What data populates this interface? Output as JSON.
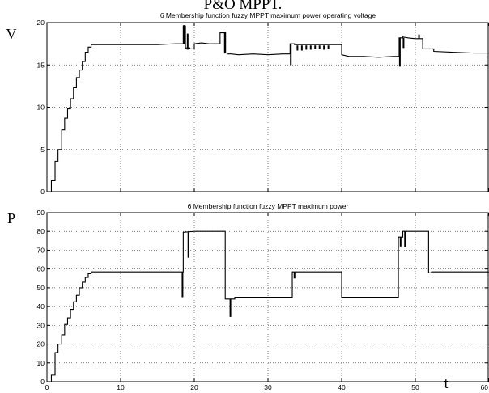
{
  "header_text": "P&O MPPT.",
  "chart_data": [
    {
      "type": "line",
      "title": "6 Membership function fuzzy MPPT maximum power operating voltage",
      "ylabel": "V",
      "xlabel": "",
      "xlim": [
        0,
        60
      ],
      "ylim": [
        0,
        20
      ],
      "grid": true,
      "x_ticks": [
        0,
        10,
        20,
        30,
        40,
        50,
        60
      ],
      "x_tick_labels": [
        "",
        "",
        "",
        "",
        "",
        "",
        ""
      ],
      "y_ticks": [
        0,
        5,
        10,
        15,
        20
      ],
      "y_tick_labels": [
        "0",
        "5",
        "10",
        "15",
        "20"
      ],
      "series": [
        {
          "x": [
            0,
            0.6,
            0.6,
            1.1,
            1.1,
            1.5,
            1.5,
            2.0,
            2.0,
            2.4,
            2.4,
            2.8,
            2.8,
            3.2,
            3.2,
            3.6,
            3.6,
            4.0,
            4.0,
            4.4,
            4.4,
            4.8,
            4.8,
            5.2,
            5.2,
            5.6,
            5.6,
            6.0,
            6.0,
            9.0,
            12.0,
            15.0,
            17.5,
            18.5,
            18.5,
            18.8,
            18.8,
            19.4,
            19.4,
            20.0,
            20.0,
            21.0,
            22.0,
            23.5,
            23.5,
            24.1,
            24.1,
            24.6,
            24.6,
            25.0,
            25.0,
            26.0,
            28.0,
            30.0,
            32.0,
            33.0,
            33.0,
            33.6,
            33.6,
            40.0,
            40.0,
            41.0,
            43.0,
            45.0,
            47.0,
            47.8,
            47.8,
            48.3,
            48.3,
            49.0,
            50.0,
            51.0,
            51.0,
            52.5,
            52.5,
            55.0,
            58.0,
            60.0
          ],
          "y": [
            0,
            0,
            1.3,
            1.3,
            3.6,
            3.6,
            5.0,
            5.0,
            7.3,
            7.3,
            8.7,
            8.7,
            9.8,
            9.8,
            11.0,
            11.0,
            12.3,
            12.3,
            13.5,
            13.5,
            14.4,
            14.4,
            15.4,
            15.4,
            16.5,
            16.5,
            17.1,
            17.1,
            17.4,
            17.4,
            17.4,
            17.4,
            17.5,
            17.5,
            19.6,
            19.6,
            17.0,
            17.0,
            16.9,
            16.9,
            17.5,
            17.6,
            17.5,
            17.5,
            18.8,
            18.8,
            16.4,
            16.4,
            16.3,
            16.3,
            16.3,
            16.2,
            16.3,
            16.2,
            16.3,
            16.3,
            17.5,
            17.5,
            17.4,
            17.4,
            16.2,
            16.0,
            16.0,
            15.9,
            16.0,
            16.0,
            18.2,
            18.2,
            18.3,
            18.2,
            18.1,
            18.1,
            16.9,
            16.9,
            16.6,
            16.5,
            16.4,
            16.4
          ]
        }
      ],
      "spikes": [
        {
          "x": 18.6,
          "y0": 17.5,
          "y1": 19.7
        },
        {
          "x": 19.1,
          "y0": 16.8,
          "y1": 18.7
        },
        {
          "x": 24.2,
          "y0": 16.4,
          "y1": 18.9
        },
        {
          "x": 33.1,
          "y0": 15.0,
          "y1": 17.5
        },
        {
          "x": 34.0,
          "y0": 17.3,
          "y1": 16.7
        },
        {
          "x": 34.6,
          "y0": 17.3,
          "y1": 16.7
        },
        {
          "x": 35.2,
          "y0": 17.3,
          "y1": 16.8
        },
        {
          "x": 35.8,
          "y0": 17.3,
          "y1": 16.8
        },
        {
          "x": 36.4,
          "y0": 17.3,
          "y1": 16.9
        },
        {
          "x": 37.0,
          "y0": 17.3,
          "y1": 16.9
        },
        {
          "x": 37.6,
          "y0": 17.3,
          "y1": 16.8
        },
        {
          "x": 38.2,
          "y0": 17.3,
          "y1": 16.9
        },
        {
          "x": 47.9,
          "y0": 14.8,
          "y1": 18.2
        },
        {
          "x": 48.4,
          "y0": 18.2,
          "y1": 17.0
        },
        {
          "x": 50.5,
          "y0": 18.1,
          "y1": 18.6
        }
      ]
    },
    {
      "type": "line",
      "title": "6 Membership function fuzzy MPPT maximum power",
      "ylabel": "P",
      "xlabel": "t",
      "xlim": [
        0,
        60
      ],
      "ylim": [
        0,
        90
      ],
      "grid": true,
      "x_ticks": [
        0,
        10,
        20,
        30,
        40,
        50,
        60
      ],
      "x_tick_labels": [
        "0",
        "10",
        "20",
        "30",
        "40",
        "50",
        "60"
      ],
      "y_ticks": [
        0,
        10,
        20,
        30,
        40,
        50,
        60,
        70,
        80,
        90
      ],
      "y_tick_labels": [
        "0",
        "10",
        "20",
        "30",
        "40",
        "50",
        "60",
        "70",
        "80",
        "90"
      ],
      "series": [
        {
          "x": [
            0,
            0.6,
            0.6,
            1.1,
            1.1,
            1.5,
            1.5,
            2.0,
            2.0,
            2.4,
            2.4,
            2.8,
            2.8,
            3.2,
            3.2,
            3.6,
            3.6,
            4.0,
            4.0,
            4.4,
            4.4,
            4.8,
            4.8,
            5.2,
            5.2,
            5.6,
            5.6,
            6.0,
            6.0,
            18.5,
            18.5,
            20.0,
            24.2,
            24.2,
            25.5,
            25.5,
            33.3,
            33.3,
            40.0,
            40.0,
            47.7,
            47.7,
            48.3,
            48.3,
            51.8,
            51.8,
            52.2,
            52.2,
            60.0
          ],
          "y": [
            0,
            0,
            3.5,
            3.5,
            15.5,
            15.5,
            20.0,
            20.0,
            25.0,
            25.0,
            30.5,
            30.5,
            34.0,
            34.0,
            38.5,
            38.5,
            42.5,
            42.5,
            46.0,
            46.0,
            50.0,
            50.0,
            53.0,
            53.0,
            55.5,
            55.5,
            57.5,
            57.5,
            58.5,
            58.5,
            79.5,
            80.0,
            80.0,
            44.0,
            44.0,
            45.0,
            45.0,
            58.5,
            58.5,
            45.0,
            45.0,
            77.0,
            77.0,
            80.0,
            80.0,
            58.0,
            58.0,
            58.5,
            58.5
          ]
        }
      ],
      "spikes": [
        {
          "x": 18.4,
          "y0": 58.5,
          "y1": 45.0
        },
        {
          "x": 19.2,
          "y0": 79.5,
          "y1": 66.0
        },
        {
          "x": 24.9,
          "y0": 44.0,
          "y1": 34.5
        },
        {
          "x": 33.6,
          "y0": 58.5,
          "y1": 55.0
        },
        {
          "x": 48.0,
          "y0": 77.0,
          "y1": 72.0
        },
        {
          "x": 48.6,
          "y0": 80.0,
          "y1": 71.5
        }
      ]
    }
  ]
}
